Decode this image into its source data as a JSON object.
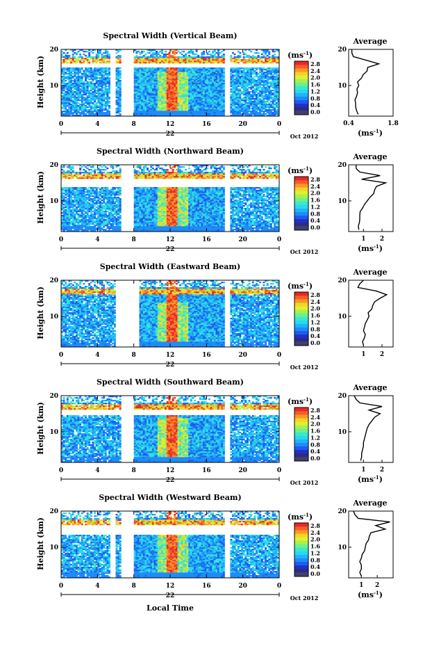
{
  "colors": {
    "scale": [
      "#2c2c80",
      "#2030c8",
      "#1e5cf0",
      "#1e8cf8",
      "#20b4f8",
      "#28d8f0",
      "#3ce8c8",
      "#6cf090",
      "#a8f050",
      "#e0f030",
      "#f8d028",
      "#f89828",
      "#f85c28",
      "#e82828"
    ],
    "lowband": "#404070"
  },
  "chart_data": [
    {
      "type": "heatmap",
      "title": "Spectral Width (Vertical Beam)",
      "ylabel": "Height (km)",
      "xlabel": "",
      "ylim": [
        1.5,
        20
      ],
      "xlim": [
        0,
        24
      ],
      "xticks": [
        "0",
        "4",
        "8",
        "12",
        "16",
        "20",
        "0"
      ],
      "yticks": [
        "20",
        "10"
      ],
      "date_label": "22",
      "month_label": "Oct 2012",
      "colorbar": {
        "unit": "(ms-1)",
        "unit_base": "(ms",
        "unit_exp": "-1",
        "unit_close": ")",
        "ticks": [
          "2.8",
          "2.4",
          "2.0",
          "1.6",
          "1.2",
          "0.8",
          "0.4",
          "0.0"
        ],
        "range": [
          0,
          2.8
        ]
      },
      "gaps": [
        [
          5.5,
          6.0
        ],
        [
          6.7,
          8.0
        ],
        [
          18.0,
          18.5
        ]
      ],
      "top_gap": [
        15.0,
        16.0
      ],
      "average": {
        "title": "Average",
        "xlabel": "(ms-1)",
        "xticks": [
          "0.4",
          "1.8"
        ],
        "xlim": [
          0.4,
          1.8
        ],
        "yticks": [
          "20",
          "10"
        ],
        "heights": [
          2,
          3,
          4,
          5,
          6,
          7,
          8,
          9,
          10,
          11,
          12,
          13,
          14,
          15,
          16,
          17,
          18,
          19,
          20
        ],
        "values": [
          0.7,
          0.65,
          0.62,
          0.62,
          0.6,
          0.65,
          0.68,
          0.66,
          0.72,
          0.68,
          0.8,
          0.86,
          0.98,
          1.0,
          1.35,
          0.95,
          0.55,
          0.5,
          0.5
        ]
      }
    },
    {
      "type": "heatmap",
      "title": "Spectral Width (Northward Beam)",
      "ylabel": "Height (km)",
      "xlabel": "",
      "ylim": [
        1.5,
        20
      ],
      "xlim": [
        0,
        24
      ],
      "xticks": [
        "0",
        "4",
        "8",
        "12",
        "16",
        "20",
        "0"
      ],
      "yticks": [
        "20",
        "10"
      ],
      "date_label": "22",
      "month_label": "Oct 2012",
      "colorbar": {
        "unit": "(ms-1)",
        "unit_base": "(ms",
        "unit_exp": "-1",
        "unit_close": ")",
        "ticks": [
          "2.8",
          "2.4",
          "2.0",
          "1.6",
          "1.2",
          "0.8",
          "0.4",
          "0.0"
        ],
        "range": [
          0,
          2.8
        ]
      },
      "gaps": [
        [
          6.7,
          8.0
        ],
        [
          18.0,
          18.5
        ]
      ],
      "top_gap": [
        14.0,
        16.0
      ],
      "average": {
        "title": "Average",
        "xlabel": "(ms-1)",
        "xticks": [
          "1",
          "2"
        ],
        "xlim": [
          0.2,
          2.6
        ],
        "yticks": [
          "20",
          "10"
        ],
        "heights": [
          2,
          3,
          4,
          5,
          6,
          7,
          8,
          9,
          10,
          11,
          12,
          13,
          14,
          15,
          16,
          17,
          18,
          19,
          20
        ],
        "values": [
          0.75,
          0.72,
          0.78,
          0.8,
          0.8,
          0.82,
          0.95,
          1.05,
          1.2,
          1.35,
          1.55,
          1.6,
          1.7,
          2.2,
          0.9,
          1.9,
          0.8,
          0.6,
          0.6
        ]
      }
    },
    {
      "type": "heatmap",
      "title": "Spectral Width (Eastward Beam)",
      "ylabel": "Height (km)",
      "xlabel": "",
      "ylim": [
        1.5,
        20
      ],
      "xlim": [
        0,
        24
      ],
      "xticks": [
        "0",
        "4",
        "8",
        "12",
        "16",
        "20",
        "0"
      ],
      "yticks": [
        "20",
        "10"
      ],
      "date_label": "22",
      "month_label": "Oct 2012",
      "colorbar": {
        "unit": "(ms-1)",
        "unit_base": "(ms",
        "unit_exp": "-1",
        "unit_close": ")",
        "ticks": [
          "2.8",
          "2.4",
          "2.0",
          "1.6",
          "1.2",
          "0.8",
          "0.4",
          "0.0"
        ],
        "range": [
          0,
          2.8
        ]
      },
      "gaps": [
        [
          6.0,
          8.5
        ],
        [
          18.0,
          18.5
        ]
      ],
      "top_gap": [
        0,
        0
      ],
      "average": {
        "title": "Average",
        "xlabel": "",
        "xticks": [
          "1",
          "2"
        ],
        "xlim": [
          0.2,
          2.6
        ],
        "yticks": [
          "20",
          "10"
        ],
        "heights": [
          2,
          3,
          4,
          5,
          6,
          7,
          8,
          9,
          10,
          11,
          12,
          13,
          14,
          15,
          16,
          17,
          18,
          19,
          20
        ],
        "values": [
          1.0,
          0.95,
          1.05,
          1.1,
          1.0,
          1.05,
          1.1,
          1.2,
          1.3,
          1.25,
          1.45,
          1.5,
          1.6,
          1.9,
          2.25,
          1.7,
          0.7,
          0.8,
          1.0
        ]
      }
    },
    {
      "type": "heatmap",
      "title": "Spectral Width (Southward Beam)",
      "ylabel": "Height (km)",
      "xlabel": "",
      "ylim": [
        1.5,
        20
      ],
      "xlim": [
        0,
        24
      ],
      "xticks": [
        "0",
        "4",
        "8",
        "12",
        "16",
        "20",
        "0"
      ],
      "yticks": [
        "20",
        "10"
      ],
      "date_label": "22",
      "month_label": "Oct 2012",
      "colorbar": {
        "unit": "(ms-1)",
        "unit_base": "(ms",
        "unit_exp": "-1",
        "unit_close": ")",
        "ticks": [
          "2.8",
          "2.4",
          "2.0",
          "1.6",
          "1.2",
          "0.8",
          "0.4",
          "0.0"
        ],
        "range": [
          0,
          2.8
        ]
      },
      "gaps": [
        [
          6.7,
          8.0
        ],
        [
          18.0,
          18.5
        ]
      ],
      "top_gap": [
        14.5,
        16.0
      ],
      "average": {
        "title": "Average",
        "xlabel": "(ms-1)",
        "xticks": [
          "1",
          "2"
        ],
        "xlim": [
          0.2,
          2.6
        ],
        "yticks": [
          "20",
          "10"
        ],
        "heights": [
          2,
          3,
          4,
          5,
          6,
          7,
          8,
          9,
          10,
          11,
          12,
          13,
          14,
          15,
          16,
          17,
          18,
          19,
          20
        ],
        "values": [
          0.85,
          0.9,
          0.9,
          0.95,
          1.0,
          1.0,
          1.05,
          1.1,
          1.15,
          1.2,
          1.3,
          1.45,
          1.6,
          1.9,
          1.3,
          2.0,
          0.8,
          0.6,
          0.5
        ]
      }
    },
    {
      "type": "heatmap",
      "title": "Spectral Width (Westward Beam)",
      "ylabel": "Height (km)",
      "xlabel": "Local Time",
      "ylim": [
        1.5,
        20
      ],
      "xlim": [
        0,
        24
      ],
      "xticks": [
        "0",
        "4",
        "8",
        "12",
        "16",
        "20",
        "0"
      ],
      "yticks": [
        "20",
        "10"
      ],
      "date_label": "22",
      "month_label": "Oct 2012",
      "colorbar": {
        "unit": "(ms-1)",
        "unit_base": "(ms",
        "unit_exp": "-1",
        "unit_close": ")",
        "ticks": [
          "2.8",
          "2.4",
          "2.0",
          "1.6",
          "1.2",
          "0.8",
          "0.4",
          "0.0"
        ],
        "range": [
          0,
          2.8
        ]
      },
      "gaps": [
        [
          5.5,
          6.0
        ],
        [
          6.7,
          8.0
        ],
        [
          18.0,
          18.5
        ]
      ],
      "top_gap": [
        13.5,
        16.0
      ],
      "average": {
        "title": "Average",
        "xlabel": "(ms-1)",
        "xticks": [
          "1",
          "2"
        ],
        "xlim": [
          0.2,
          3.0
        ],
        "yticks": [
          "20",
          "10"
        ],
        "heights": [
          2,
          3,
          4,
          5,
          6,
          7,
          8,
          9,
          10,
          11,
          12,
          13,
          14,
          15,
          16,
          17,
          18,
          19,
          20
        ],
        "values": [
          1.0,
          0.9,
          1.0,
          1.0,
          0.9,
          1.0,
          1.05,
          1.2,
          1.25,
          1.3,
          1.45,
          1.5,
          1.6,
          2.5,
          1.9,
          2.8,
          0.8,
          0.6,
          0.5
        ]
      }
    }
  ]
}
